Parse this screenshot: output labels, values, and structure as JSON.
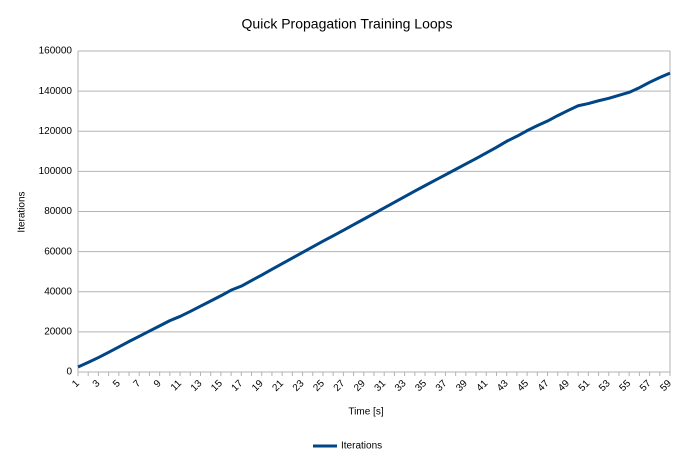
{
  "chart_data": {
    "type": "line",
    "title": "Quick Propagation Training Loops",
    "x_label": "Time [s]",
    "y_label": "Iterations",
    "categories": [
      1,
      null,
      3,
      null,
      5,
      null,
      7,
      null,
      9,
      null,
      11,
      null,
      13,
      null,
      15,
      null,
      17,
      null,
      19,
      null,
      21,
      null,
      23,
      null,
      25,
      null,
      27,
      null,
      29,
      null,
      31,
      null,
      33,
      null,
      35,
      null,
      37,
      null,
      39,
      null,
      41,
      null,
      43,
      null,
      45,
      null,
      47,
      null,
      49,
      null,
      51,
      null,
      53,
      null,
      55,
      null,
      57,
      null,
      59
    ],
    "series": [
      {
        "name": "Iterations",
        "color": "#004586",
        "values": [
          2500,
          4800,
          7200,
          9800,
          12500,
          15200,
          17800,
          20400,
          23000,
          25600,
          27700,
          30200,
          32800,
          35400,
          38000,
          40800,
          42800,
          45600,
          48300,
          51200,
          54000,
          56800,
          59600,
          62400,
          65200,
          67900,
          70600,
          73400,
          76200,
          79000,
          81800,
          84600,
          87400,
          90200,
          92900,
          95600,
          98300,
          101000,
          103700,
          106400,
          109200,
          112000,
          115000,
          117500,
          120300,
          122800,
          125100,
          127800,
          130300,
          132700,
          133800,
          135200,
          136400,
          137900,
          139400,
          141700,
          144400,
          146800,
          149000
        ]
      }
    ],
    "ylim": [
      0,
      160000
    ],
    "yticks": [
      0,
      20000,
      40000,
      60000,
      80000,
      100000,
      120000,
      140000,
      160000
    ],
    "grid": true,
    "legend": "bottom"
  }
}
